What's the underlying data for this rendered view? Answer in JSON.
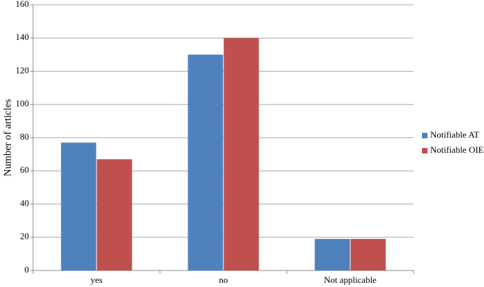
{
  "chart_data": {
    "type": "bar",
    "y_label": "Number of articles",
    "categories": [
      "yes",
      "no",
      "Not applicable"
    ],
    "series": [
      {
        "name": "Notifiable AT",
        "color": "#4f81bd",
        "values": [
          77,
          130,
          19
        ]
      },
      {
        "name": "Notifiable OIE",
        "color": "#c0504d",
        "values": [
          67,
          140,
          19
        ]
      }
    ],
    "ylim": [
      0,
      160
    ],
    "yticks": [
      0,
      20,
      40,
      60,
      80,
      100,
      120,
      140,
      160
    ],
    "grid": true,
    "legend": "right"
  }
}
